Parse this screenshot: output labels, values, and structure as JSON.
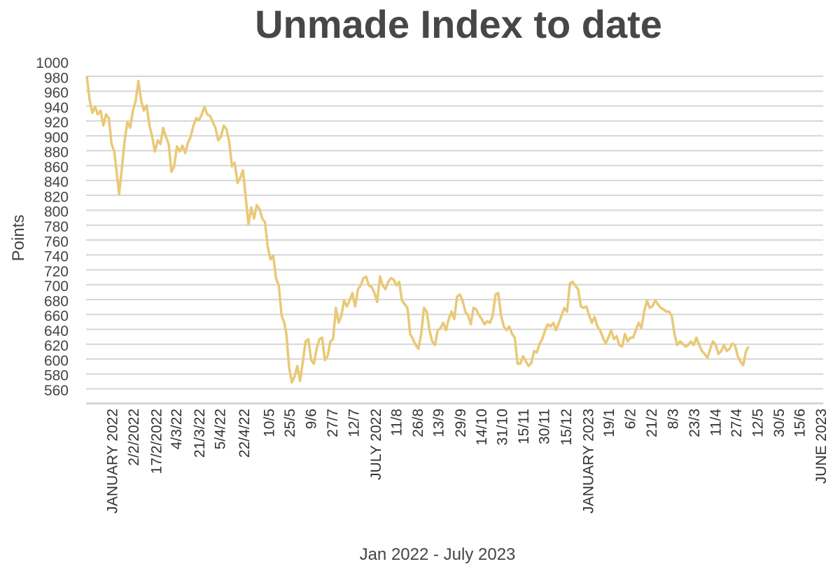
{
  "chart_data": {
    "type": "line",
    "title": "Unmade Index to date",
    "xlabel": "Jan 2022 - July 2023",
    "ylabel": "Points",
    "ylim": [
      560,
      1000
    ],
    "y_ticks": [
      560,
      580,
      600,
      620,
      640,
      660,
      680,
      700,
      720,
      740,
      760,
      780,
      800,
      820,
      840,
      860,
      880,
      900,
      920,
      940,
      960,
      980,
      1000
    ],
    "grid": true,
    "legend": "none",
    "line_color": "#e9c977",
    "x_tick_labels": [
      {
        "label": "JANUARY 2022",
        "x": 0.037
      },
      {
        "label": "2/2/2022",
        "x": 0.068
      },
      {
        "label": "17/2/2022",
        "x": 0.101
      },
      {
        "label": "4/3/22",
        "x": 0.13
      },
      {
        "label": "21/3/22",
        "x": 0.164
      },
      {
        "label": "5/4/22",
        "x": 0.194
      },
      {
        "label": "22/4/22",
        "x": 0.229
      },
      {
        "label": "10/5",
        "x": 0.265
      },
      {
        "label": "25/5",
        "x": 0.295
      },
      {
        "label": "9/6",
        "x": 0.326
      },
      {
        "label": "27/7",
        "x": 0.357
      },
      {
        "label": "12/7",
        "x": 0.388
      },
      {
        "label": "JULY 2022",
        "x": 0.42
      },
      {
        "label": "11/8",
        "x": 0.45
      },
      {
        "label": "26/8",
        "x": 0.481
      },
      {
        "label": "13/9",
        "x": 0.511
      },
      {
        "label": "29/9",
        "x": 0.543
      },
      {
        "label": "14/10",
        "x": 0.574
      },
      {
        "label": "31/10",
        "x": 0.604
      },
      {
        "label": "15/11",
        "x": 0.635
      },
      {
        "label": "30/11",
        "x": 0.665
      },
      {
        "label": "15/12",
        "x": 0.697
      },
      {
        "label": "JANUARY 2023",
        "x": 0.729
      },
      {
        "label": "19/1",
        "x": 0.759
      },
      {
        "label": "6/2",
        "x": 0.79
      },
      {
        "label": "21/2",
        "x": 0.821
      },
      {
        "label": "8/3",
        "x": 0.852
      },
      {
        "label": "23/3",
        "x": 0.883
      },
      {
        "label": "11/4",
        "x": 0.914
      },
      {
        "label": "27/4",
        "x": 0.944
      },
      {
        "label": "12/5",
        "x": 0.975
      },
      {
        "label": "30/5",
        "x": 1.006
      },
      {
        "label": "15/6",
        "x": 1.036
      },
      {
        "label": "JUNE 2023",
        "x": 1.067
      }
    ],
    "series": [
      {
        "name": "",
        "points": [
          [
            0.0,
            981
          ],
          [
            0.004,
            950
          ],
          [
            0.008,
            932
          ],
          [
            0.012,
            940
          ],
          [
            0.016,
            930
          ],
          [
            0.02,
            935
          ],
          [
            0.024,
            915
          ],
          [
            0.028,
            930
          ],
          [
            0.032,
            925
          ],
          [
            0.036,
            890
          ],
          [
            0.04,
            880
          ],
          [
            0.043,
            855
          ],
          [
            0.047,
            823
          ],
          [
            0.051,
            858
          ],
          [
            0.055,
            895
          ],
          [
            0.059,
            920
          ],
          [
            0.063,
            912
          ],
          [
            0.067,
            935
          ],
          [
            0.071,
            948
          ],
          [
            0.075,
            975
          ],
          [
            0.079,
            948
          ],
          [
            0.083,
            935
          ],
          [
            0.087,
            942
          ],
          [
            0.091,
            915
          ],
          [
            0.095,
            900
          ],
          [
            0.099,
            880
          ],
          [
            0.103,
            895
          ],
          [
            0.107,
            890
          ],
          [
            0.111,
            912
          ],
          [
            0.115,
            900
          ],
          [
            0.119,
            890
          ],
          [
            0.123,
            853
          ],
          [
            0.127,
            860
          ],
          [
            0.131,
            887
          ],
          [
            0.135,
            880
          ],
          [
            0.139,
            888
          ],
          [
            0.143,
            878
          ],
          [
            0.147,
            892
          ],
          [
            0.151,
            900
          ],
          [
            0.155,
            915
          ],
          [
            0.159,
            925
          ],
          [
            0.163,
            922
          ],
          [
            0.167,
            930
          ],
          [
            0.171,
            940
          ],
          [
            0.175,
            930
          ],
          [
            0.179,
            928
          ],
          [
            0.183,
            920
          ],
          [
            0.187,
            912
          ],
          [
            0.191,
            895
          ],
          [
            0.195,
            900
          ],
          [
            0.199,
            915
          ],
          [
            0.203,
            910
          ],
          [
            0.207,
            893
          ],
          [
            0.211,
            860
          ],
          [
            0.215,
            865
          ],
          [
            0.219,
            838
          ],
          [
            0.223,
            845
          ],
          [
            0.227,
            855
          ],
          [
            0.231,
            818
          ],
          [
            0.235,
            782
          ],
          [
            0.239,
            805
          ],
          [
            0.243,
            790
          ],
          [
            0.247,
            808
          ],
          [
            0.251,
            803
          ],
          [
            0.255,
            790
          ],
          [
            0.259,
            785
          ],
          [
            0.263,
            752
          ],
          [
            0.267,
            735
          ],
          [
            0.271,
            740
          ],
          [
            0.275,
            710
          ],
          [
            0.279,
            700
          ],
          [
            0.283,
            660
          ],
          [
            0.287,
            650
          ],
          [
            0.29,
            635
          ],
          [
            0.294,
            590
          ],
          [
            0.298,
            570
          ],
          [
            0.302,
            578
          ],
          [
            0.306,
            592
          ],
          [
            0.31,
            572
          ],
          [
            0.314,
            598
          ],
          [
            0.318,
            625
          ],
          [
            0.322,
            628
          ],
          [
            0.326,
            600
          ],
          [
            0.33,
            595
          ],
          [
            0.334,
            615
          ],
          [
            0.338,
            628
          ],
          [
            0.342,
            630
          ],
          [
            0.346,
            600
          ],
          [
            0.35,
            605
          ],
          [
            0.354,
            625
          ],
          [
            0.358,
            628
          ],
          [
            0.362,
            670
          ],
          [
            0.366,
            650
          ],
          [
            0.37,
            660
          ],
          [
            0.374,
            680
          ],
          [
            0.378,
            672
          ],
          [
            0.382,
            680
          ],
          [
            0.386,
            690
          ],
          [
            0.39,
            672
          ],
          [
            0.394,
            695
          ],
          [
            0.398,
            700
          ],
          [
            0.402,
            710
          ],
          [
            0.406,
            712
          ],
          [
            0.41,
            700
          ],
          [
            0.414,
            698
          ],
          [
            0.418,
            690
          ],
          [
            0.422,
            678
          ],
          [
            0.426,
            712
          ],
          [
            0.43,
            700
          ],
          [
            0.434,
            695
          ],
          [
            0.438,
            705
          ],
          [
            0.442,
            710
          ],
          [
            0.446,
            708
          ],
          [
            0.45,
            700
          ],
          [
            0.454,
            705
          ],
          [
            0.458,
            680
          ],
          [
            0.462,
            675
          ],
          [
            0.466,
            670
          ],
          [
            0.47,
            635
          ],
          [
            0.474,
            628
          ],
          [
            0.478,
            620
          ],
          [
            0.482,
            615
          ],
          [
            0.486,
            635
          ],
          [
            0.49,
            670
          ],
          [
            0.494,
            665
          ],
          [
            0.498,
            640
          ],
          [
            0.502,
            625
          ],
          [
            0.506,
            620
          ],
          [
            0.51,
            640
          ],
          [
            0.514,
            643
          ],
          [
            0.518,
            650
          ],
          [
            0.522,
            640
          ],
          [
            0.526,
            655
          ],
          [
            0.53,
            665
          ],
          [
            0.534,
            655
          ],
          [
            0.538,
            685
          ],
          [
            0.542,
            688
          ],
          [
            0.546,
            680
          ],
          [
            0.55,
            665
          ],
          [
            0.554,
            660
          ],
          [
            0.558,
            648
          ],
          [
            0.562,
            670
          ],
          [
            0.566,
            668
          ],
          [
            0.57,
            660
          ],
          [
            0.574,
            655
          ],
          [
            0.578,
            648
          ],
          [
            0.582,
            652
          ],
          [
            0.586,
            650
          ],
          [
            0.59,
            660
          ],
          [
            0.594,
            688
          ],
          [
            0.598,
            690
          ],
          [
            0.602,
            660
          ],
          [
            0.606,
            645
          ],
          [
            0.61,
            640
          ],
          [
            0.614,
            645
          ],
          [
            0.618,
            635
          ],
          [
            0.622,
            630
          ],
          [
            0.626,
            595
          ],
          [
            0.63,
            595
          ],
          [
            0.634,
            605
          ],
          [
            0.638,
            598
          ],
          [
            0.642,
            592
          ],
          [
            0.646,
            596
          ],
          [
            0.65,
            612
          ],
          [
            0.654,
            610
          ],
          [
            0.658,
            622
          ],
          [
            0.662,
            628
          ],
          [
            0.666,
            640
          ],
          [
            0.67,
            648
          ],
          [
            0.674,
            645
          ],
          [
            0.678,
            650
          ],
          [
            0.682,
            640
          ],
          [
            0.686,
            650
          ],
          [
            0.69,
            660
          ],
          [
            0.694,
            670
          ],
          [
            0.698,
            665
          ],
          [
            0.702,
            703
          ],
          [
            0.706,
            705
          ],
          [
            0.71,
            700
          ],
          [
            0.714,
            695
          ],
          [
            0.718,
            672
          ],
          [
            0.722,
            670
          ],
          [
            0.726,
            672
          ],
          [
            0.73,
            660
          ],
          [
            0.734,
            650
          ],
          [
            0.738,
            658
          ],
          [
            0.742,
            645
          ],
          [
            0.746,
            640
          ],
          [
            0.75,
            630
          ],
          [
            0.754,
            622
          ],
          [
            0.758,
            630
          ],
          [
            0.762,
            640
          ],
          [
            0.766,
            628
          ],
          [
            0.77,
            632
          ],
          [
            0.774,
            620
          ],
          [
            0.778,
            618
          ],
          [
            0.782,
            635
          ],
          [
            0.786,
            625
          ],
          [
            0.79,
            630
          ],
          [
            0.794,
            630
          ],
          [
            0.798,
            640
          ],
          [
            0.802,
            650
          ],
          [
            0.806,
            643
          ],
          [
            0.81,
            665
          ],
          [
            0.814,
            680
          ],
          [
            0.818,
            670
          ],
          [
            0.822,
            672
          ],
          [
            0.826,
            680
          ],
          [
            0.83,
            675
          ],
          [
            0.834,
            670
          ],
          [
            0.838,
            668
          ],
          [
            0.842,
            665
          ],
          [
            0.846,
            665
          ],
          [
            0.85,
            660
          ],
          [
            0.854,
            635
          ],
          [
            0.858,
            620
          ],
          [
            0.862,
            625
          ],
          [
            0.866,
            622
          ],
          [
            0.87,
            618
          ],
          [
            0.874,
            620
          ],
          [
            0.878,
            625
          ],
          [
            0.882,
            620
          ],
          [
            0.886,
            630
          ],
          [
            0.89,
            620
          ],
          [
            0.894,
            612
          ],
          [
            0.898,
            608
          ],
          [
            0.902,
            603
          ],
          [
            0.906,
            615
          ],
          [
            0.91,
            625
          ],
          [
            0.914,
            620
          ],
          [
            0.918,
            608
          ],
          [
            0.922,
            612
          ],
          [
            0.926,
            620
          ],
          [
            0.93,
            612
          ],
          [
            0.934,
            615
          ],
          [
            0.938,
            622
          ],
          [
            0.942,
            620
          ],
          [
            0.946,
            605
          ],
          [
            0.95,
            598
          ],
          [
            0.954,
            593
          ],
          [
            0.958,
            612
          ],
          [
            0.962,
            618
          ]
        ]
      }
    ]
  }
}
